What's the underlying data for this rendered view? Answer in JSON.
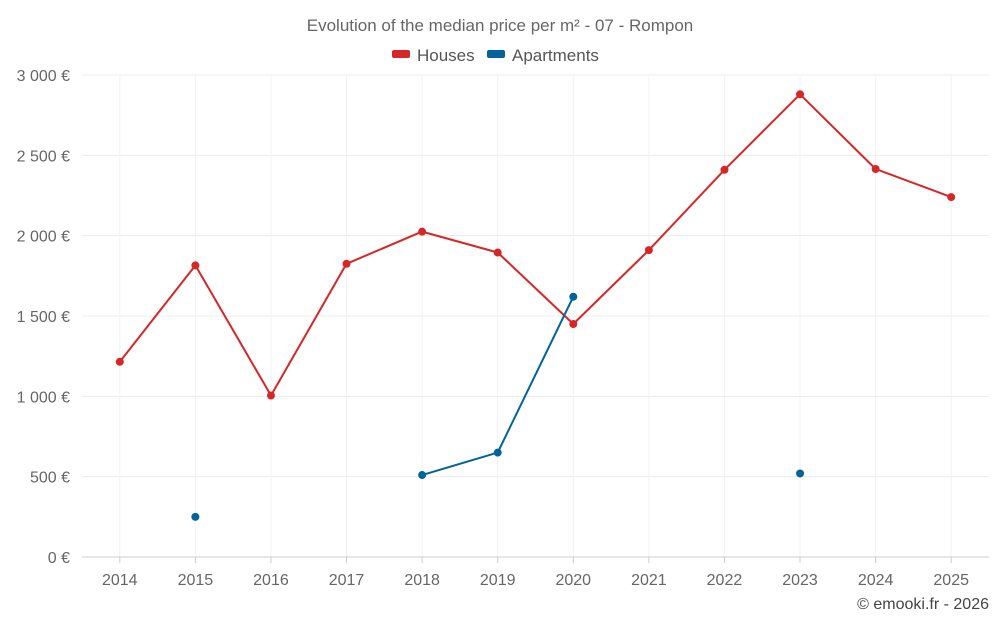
{
  "chart_data": {
    "type": "line",
    "title": "Evolution of the median price per m² - 07 - Rompon",
    "xlabel": "",
    "ylabel": "",
    "categories": [
      "2014",
      "2015",
      "2016",
      "2017",
      "2018",
      "2019",
      "2020",
      "2021",
      "2022",
      "2023",
      "2024",
      "2025"
    ],
    "ylim": [
      0,
      3000
    ],
    "yticks": [
      0,
      500,
      1000,
      1500,
      2000,
      2500,
      3000
    ],
    "ytick_labels": [
      "0 €",
      "500 €",
      "1 000 €",
      "1 500 €",
      "2 000 €",
      "2 500 €",
      "3 000 €"
    ],
    "grid": true,
    "legend_position": "top-center",
    "series": [
      {
        "name": "Houses",
        "color": "#d62728",
        "values": [
          1215,
          1815,
          1005,
          1825,
          2025,
          1895,
          1450,
          1910,
          2410,
          2880,
          2415,
          2240
        ]
      },
      {
        "name": "Apartments",
        "color": "#00639a",
        "values": [
          null,
          250,
          null,
          null,
          510,
          650,
          1620,
          null,
          null,
          520,
          null,
          null
        ]
      }
    ]
  },
  "credit": "© emooki.fr - 2026"
}
